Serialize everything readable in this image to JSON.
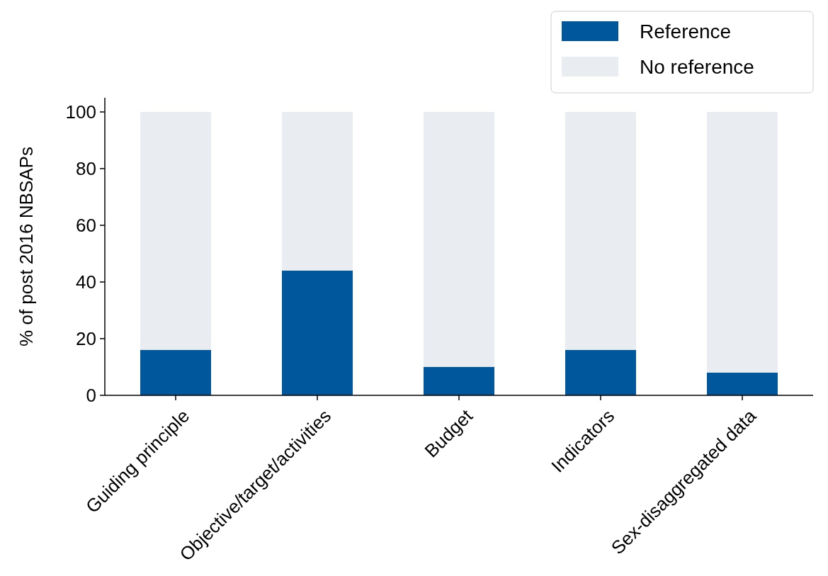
{
  "chart_data": {
    "type": "bar",
    "stacked": true,
    "ylabel": "% of post 2016 NBSAPs",
    "categories": [
      "Guiding principle",
      "Objective/target/activities",
      "Budget",
      "Indicators",
      "Sex-disaggregated data"
    ],
    "series": [
      {
        "name": "Reference",
        "color": "#00579c",
        "values": [
          16,
          44,
          10,
          16,
          8
        ]
      },
      {
        "name": "No reference",
        "color": "#e9edf1",
        "values": [
          84,
          56,
          90,
          84,
          92
        ]
      }
    ],
    "ylim": [
      0,
      105
    ],
    "yticks": [
      0,
      20,
      40,
      60,
      80,
      100
    ],
    "grid": false,
    "legend": "top right"
  }
}
